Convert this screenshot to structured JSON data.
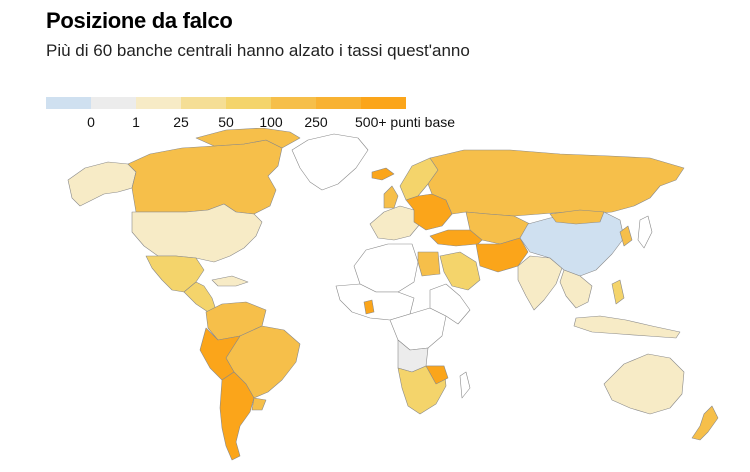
{
  "title": "Posizione da falco",
  "subtitle": "Più di 60 banche centrali hanno alzato i tassi quest'anno",
  "legend": {
    "colors": [
      "#cfe0f0",
      "#ececec",
      "#f7ebc6",
      "#f5de95",
      "#f4d46b",
      "#f6bf4a",
      "#f8b232",
      "#fba51a"
    ],
    "labels": [
      "0",
      "1",
      "25",
      "50",
      "100",
      "250",
      "500+ punti base"
    ]
  },
  "colors": {
    "no_data": "#ffffff",
    "zero": "#cfe0f0",
    "low": "#f7ebc6",
    "mid": "#f4d46b",
    "high": "#f6bf4a",
    "top": "#fba51a"
  }
}
